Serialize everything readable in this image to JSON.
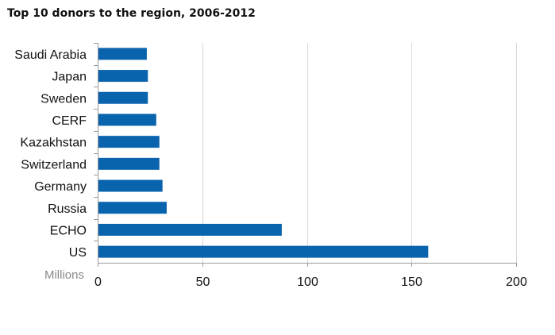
{
  "chart_data": {
    "type": "bar",
    "orientation": "horizontal",
    "title": "Top 10 donors to the region, 2006-2012",
    "xlabel": "Millions",
    "ylabel": "",
    "categories": [
      "Saudi Arabia",
      "Japan",
      "Sweden",
      "CERF",
      "Kazakhstan",
      "Switzerland",
      "Germany",
      "Russia",
      "ECHO",
      "US"
    ],
    "values": [
      23.5,
      24,
      24,
      28,
      29.5,
      29.5,
      31,
      33,
      88,
      158
    ],
    "xlim": [
      0,
      200
    ],
    "xticks": [
      "0",
      "50",
      "100",
      "150",
      "200"
    ],
    "grid": true,
    "legend": "none",
    "bar_color": "#0a64ad",
    "grid_color": "#d9d9d9",
    "axis_color": "#9a9a9a"
  }
}
